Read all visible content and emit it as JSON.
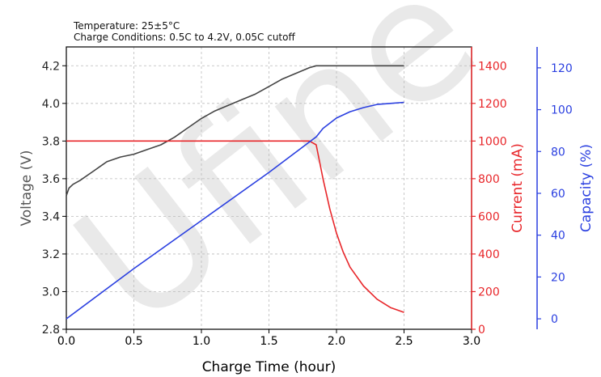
{
  "chart_data": {
    "type": "line",
    "annotations": [
      "Temperature: 25±5°C",
      "Charge Conditions: 0.5C to 4.2V, 0.05C cutoff"
    ],
    "watermark": "Ufine",
    "xlabel": "Charge Time (hour)",
    "xlim": [
      0.0,
      3.0
    ],
    "xticks": [
      "0.0",
      "0.5",
      "1.0",
      "1.5",
      "2.0",
      "2.5",
      "3.0"
    ],
    "grid": true,
    "axes": {
      "voltage": {
        "label": "Voltage (V)",
        "range": [
          2.8,
          4.3
        ],
        "ticks": [
          "2.8",
          "3.0",
          "3.2",
          "3.4",
          "3.6",
          "3.8",
          "4.0",
          "4.2"
        ],
        "color": "#444444"
      },
      "current": {
        "label": "Current (mA)",
        "range": [
          0,
          1500
        ],
        "ticks": [
          "0",
          "200",
          "400",
          "600",
          "800",
          "1000",
          "1200",
          "1400"
        ],
        "color": "#e8262a"
      },
      "capacity": {
        "label": "Capacity (%)",
        "range": [
          -5,
          130
        ],
        "ticks": [
          "0",
          "20",
          "40",
          "60",
          "80",
          "100",
          "120"
        ],
        "color": "#2a3fe0"
      }
    },
    "series": [
      {
        "axis": "voltage",
        "color": "#444444",
        "x": [
          0.0,
          0.02,
          0.05,
          0.1,
          0.2,
          0.3,
          0.4,
          0.5,
          0.6,
          0.7,
          0.8,
          0.9,
          1.0,
          1.1,
          1.2,
          1.3,
          1.4,
          1.5,
          1.6,
          1.7,
          1.8,
          1.85,
          1.9,
          2.0,
          2.1,
          2.2,
          2.3,
          2.4,
          2.5
        ],
        "y": [
          3.51,
          3.55,
          3.57,
          3.59,
          3.64,
          3.69,
          3.715,
          3.73,
          3.755,
          3.78,
          3.82,
          3.87,
          3.92,
          3.96,
          3.99,
          4.02,
          4.05,
          4.09,
          4.13,
          4.16,
          4.19,
          4.2,
          4.2,
          4.2,
          4.2,
          4.2,
          4.2,
          4.2,
          4.2
        ]
      },
      {
        "axis": "current",
        "color": "#e8262a",
        "x": [
          0.0,
          0.5,
          1.0,
          1.5,
          1.8,
          1.85,
          1.9,
          1.95,
          2.0,
          2.05,
          2.1,
          2.2,
          2.3,
          2.4,
          2.5
        ],
        "y": [
          1000,
          1000,
          1000,
          1000,
          1000,
          980,
          800,
          640,
          510,
          410,
          330,
          230,
          160,
          115,
          90
        ]
      },
      {
        "axis": "capacity",
        "color": "#2a3fe0",
        "x": [
          0.0,
          0.5,
          1.0,
          1.5,
          1.85,
          1.9,
          2.0,
          2.1,
          2.2,
          2.3,
          2.4,
          2.5
        ],
        "y": [
          0,
          24,
          47,
          70,
          87,
          91,
          96,
          99,
          101,
          102.5,
          103,
          103.5
        ]
      }
    ]
  }
}
